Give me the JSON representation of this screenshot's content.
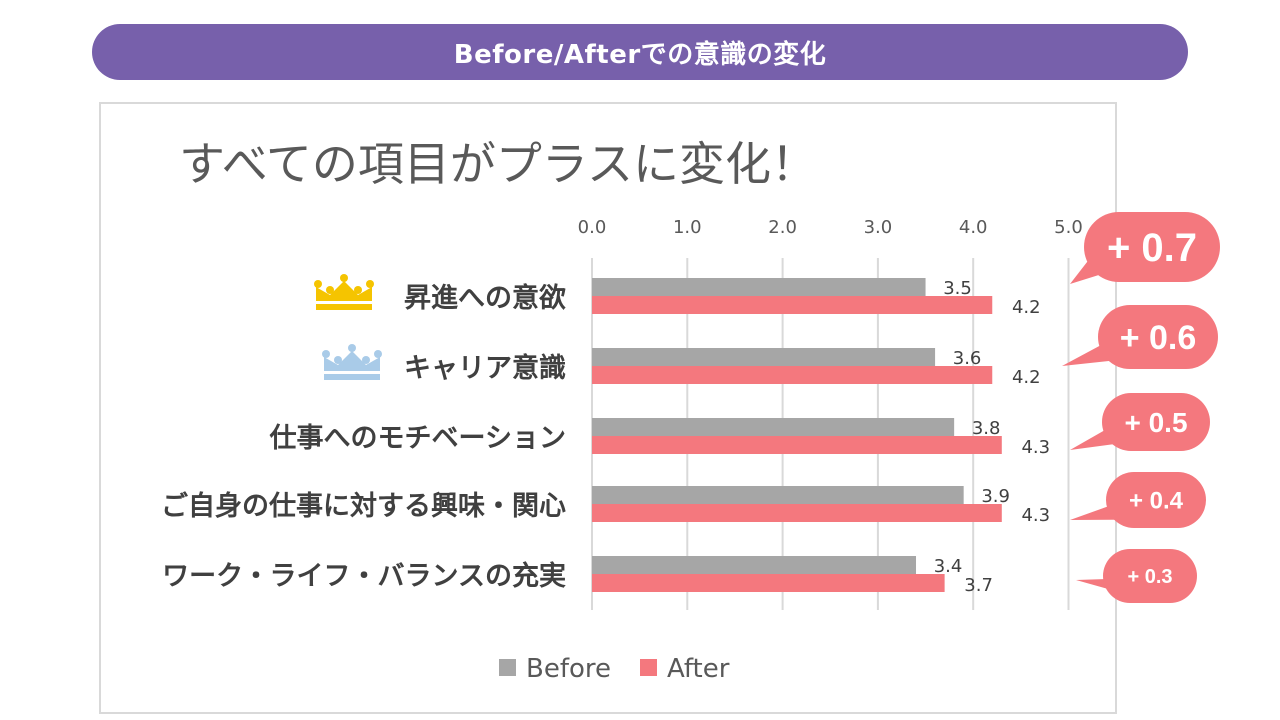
{
  "banner": {
    "title": "Before/Afterでの意識の変化"
  },
  "chart_data": {
    "type": "bar",
    "orientation": "horizontal",
    "title": "すべての項目がプラスに変化！",
    "categories": [
      "昇進への意欲",
      "キャリア意識",
      "仕事へのモチベーション",
      "ご自身の仕事に対する興味・関心",
      "ワーク・ライフ・バランスの充実"
    ],
    "series": [
      {
        "name": "Before",
        "color": "#a6a6a6",
        "values": [
          3.5,
          3.6,
          3.8,
          3.9,
          3.4
        ]
      },
      {
        "name": "After",
        "color": "#f4787e",
        "values": [
          4.2,
          4.2,
          4.3,
          4.3,
          3.7
        ]
      }
    ],
    "value_labels": {
      "Before": [
        "3.5",
        "3.6",
        "3.8",
        "3.9",
        "3.4"
      ],
      "After": [
        "4.2",
        "4.2",
        "4.3",
        "4.3",
        "3.7"
      ]
    },
    "xlim": [
      0,
      5
    ],
    "ticks": [
      "0.0",
      "1.0",
      "2.0",
      "3.0",
      "4.0",
      "5.0"
    ],
    "tick_values": [
      0,
      1,
      2,
      3,
      4,
      5
    ],
    "axis_position": "top",
    "grid": true,
    "legend": {
      "position": "bottom",
      "items": [
        "Before",
        "After"
      ]
    },
    "annotations": {
      "deltas": [
        "+ 0.7",
        "+ 0.6",
        "+ 0.5",
        "+ 0.4",
        "+ 0.3"
      ],
      "delta_color": "#f4787e",
      "crown_icons": [
        {
          "category_index": 0,
          "icon": "gold-crown-icon",
          "color": "#f5c400"
        },
        {
          "category_index": 1,
          "icon": "blue-crown-icon",
          "color": "#a9cbe8"
        }
      ]
    }
  }
}
